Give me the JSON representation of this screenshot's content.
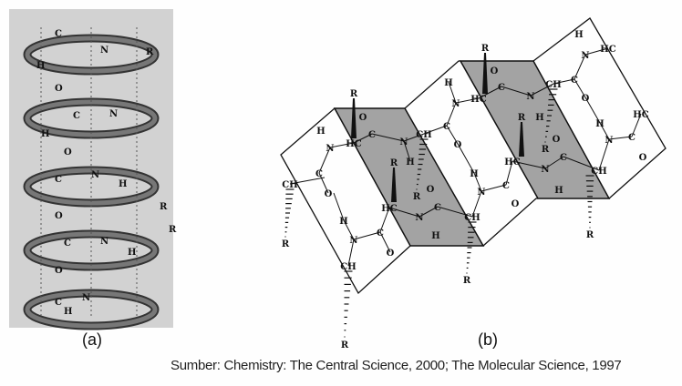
{
  "figure": {
    "panel_a_label": "(a)",
    "panel_b_label": "(b)",
    "caption": "Sumber: Chemistry: The Central Science, 2000; The Molecular Science, 1997",
    "panel_a": {
      "atom_labels": [
        "C",
        "N",
        "H",
        "O",
        "R",
        "C",
        "N",
        "H",
        "O",
        "C",
        "N",
        "H",
        "O",
        "R",
        "C",
        "N",
        "H",
        "O",
        "R",
        "C",
        "N",
        "H"
      ]
    },
    "panel_b": {
      "atom_labels": [
        "R",
        "H",
        "N",
        "HC",
        "O",
        "C",
        "N",
        "H",
        "CH",
        "C",
        "O",
        "H",
        "N",
        "HC",
        "R",
        "O",
        "C",
        "N",
        "H",
        "CH",
        "C",
        "O",
        "H",
        "N",
        "HC",
        "HC",
        "H",
        "N",
        "C",
        "O",
        "CH",
        "H",
        "N",
        "C",
        "O",
        "R",
        "HC",
        "R",
        "C",
        "O",
        "N",
        "H",
        "CH",
        "R",
        "C",
        "O",
        "R",
        "N",
        "H",
        "HC",
        "R",
        "C",
        "O",
        "N",
        "H",
        "O",
        "C",
        "CH",
        "R",
        "CH",
        "R",
        "R"
      ]
    },
    "colors": {
      "shaded_plane": "#9e9e9e",
      "line": "#111111",
      "helix_background": "#c8c8c8"
    }
  }
}
